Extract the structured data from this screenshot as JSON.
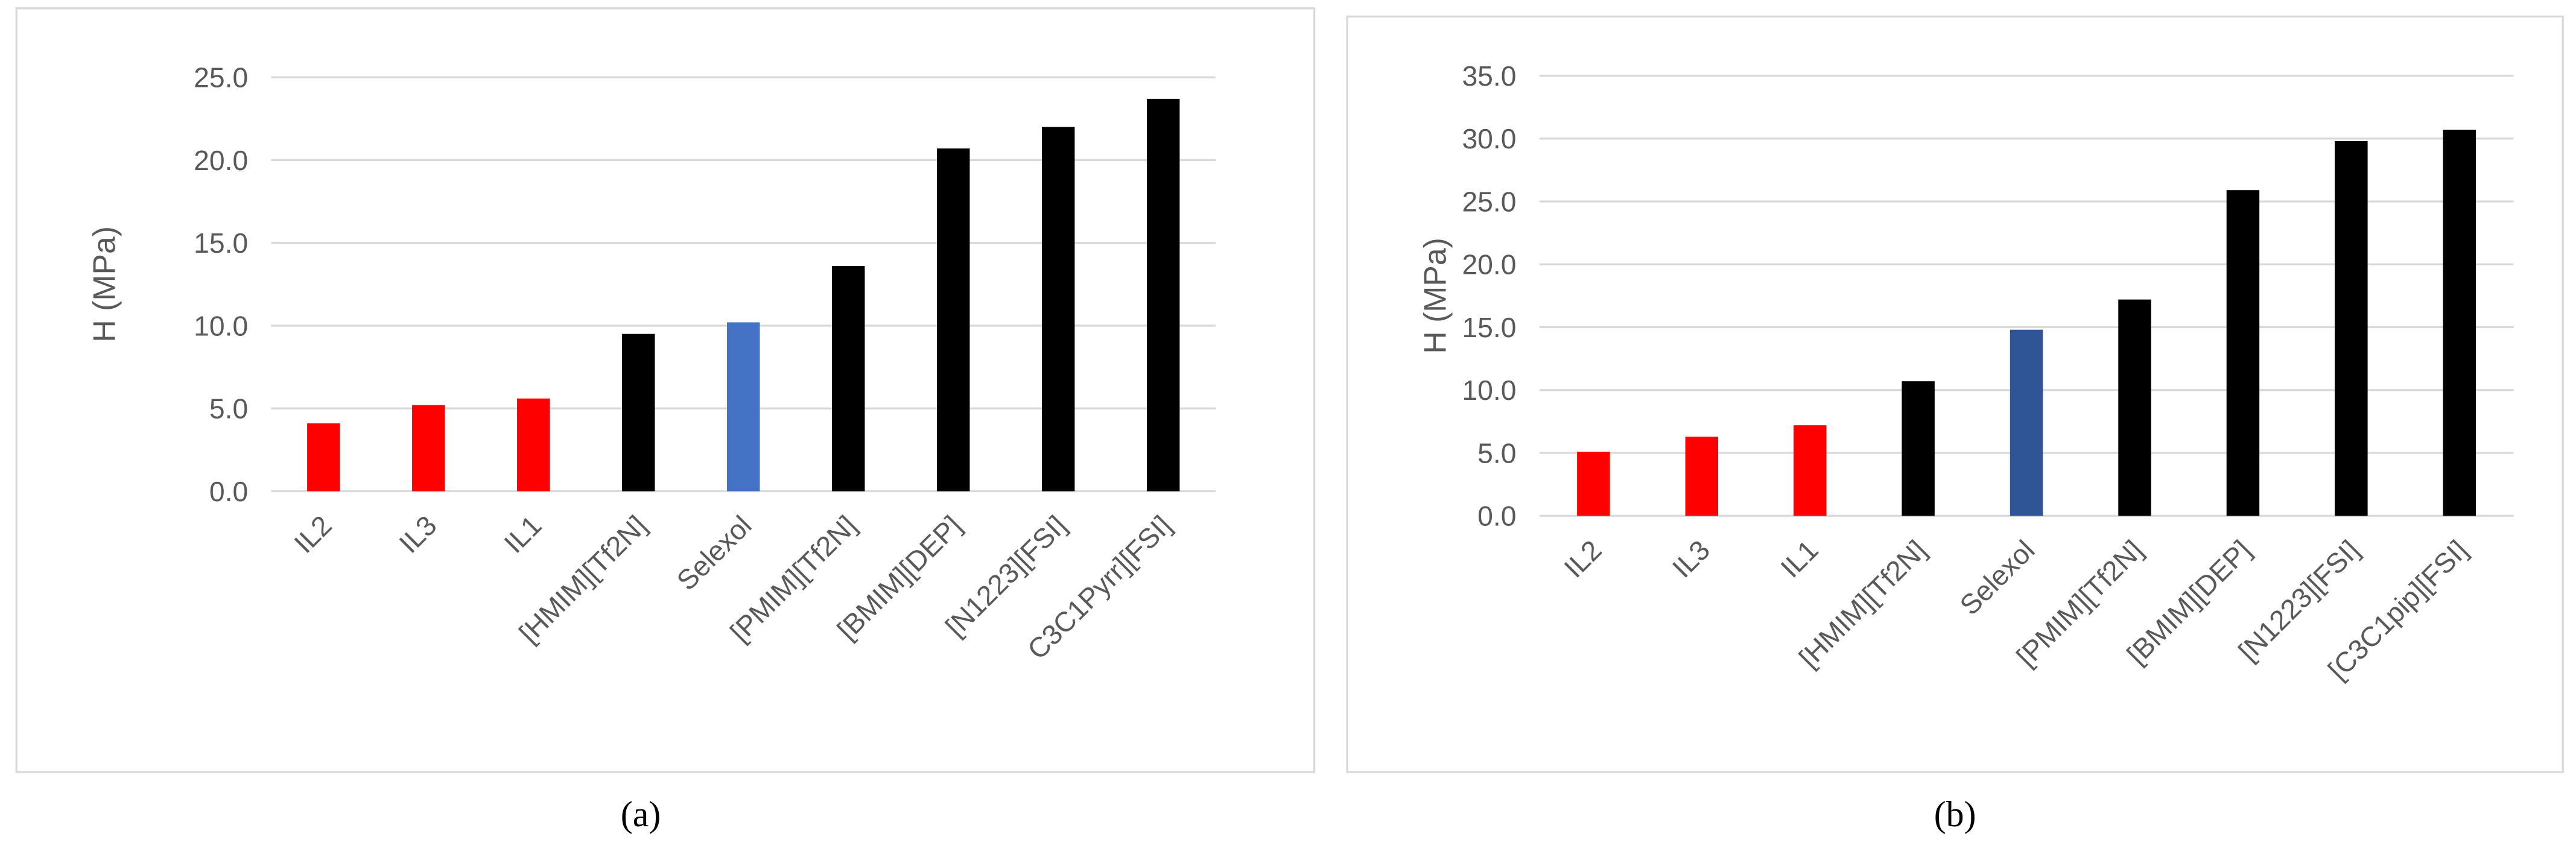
{
  "chart_data": [
    {
      "type": "bar",
      "caption": "(a)",
      "y_label": "H (MPa)",
      "categories": [
        "IL2",
        "IL3",
        "IL1",
        "[HMIM][Tf2N]",
        "Selexol",
        "[PMIM][Tf2N]",
        "[BMIM][DEP]",
        "[N1223][FSI]",
        "C3C1Pyrr][FSI]"
      ],
      "values": [
        4.1,
        5.2,
        5.6,
        9.5,
        10.2,
        13.6,
        20.7,
        22.0,
        23.7
      ],
      "colors": [
        "#ff0000",
        "#ff0000",
        "#ff0000",
        "#000000",
        "#4472c4",
        "#000000",
        "#000000",
        "#000000",
        "#000000"
      ],
      "ylim": [
        0,
        25
      ],
      "yticks": [
        {
          "value": 0,
          "label": "0.0"
        },
        {
          "value": 5,
          "label": "5.0"
        },
        {
          "value": 10,
          "label": "10.0"
        },
        {
          "value": 15,
          "label": "15.0"
        },
        {
          "value": 20,
          "label": "20.0"
        },
        {
          "value": 25,
          "label": "25.0"
        }
      ],
      "grid": true
    },
    {
      "type": "bar",
      "caption": "(b)",
      "y_label": "H (MPa)",
      "categories": [
        "IL2",
        "IL3",
        "IL1",
        "[HMIM][Tf2N]",
        "Selexol",
        "[PMIM][Tf2N]",
        "[BMIM][DEP]",
        "[N1223][FSI]",
        "[C3C1pip][FSI]"
      ],
      "values": [
        5.1,
        6.3,
        7.2,
        10.7,
        14.8,
        17.2,
        25.9,
        29.8,
        30.7
      ],
      "colors": [
        "#ff0000",
        "#ff0000",
        "#ff0000",
        "#000000",
        "#2f5597",
        "#000000",
        "#000000",
        "#000000",
        "#000000"
      ],
      "ylim": [
        0,
        35
      ],
      "yticks": [
        {
          "value": 0,
          "label": "0.0"
        },
        {
          "value": 5,
          "label": "5.0"
        },
        {
          "value": 10,
          "label": "10.0"
        },
        {
          "value": 15,
          "label": "15.0"
        },
        {
          "value": 20,
          "label": "20.0"
        },
        {
          "value": 25,
          "label": "25.0"
        },
        {
          "value": 30,
          "label": "30.0"
        },
        {
          "value": 35,
          "label": "35.0"
        }
      ],
      "grid": true
    }
  ]
}
